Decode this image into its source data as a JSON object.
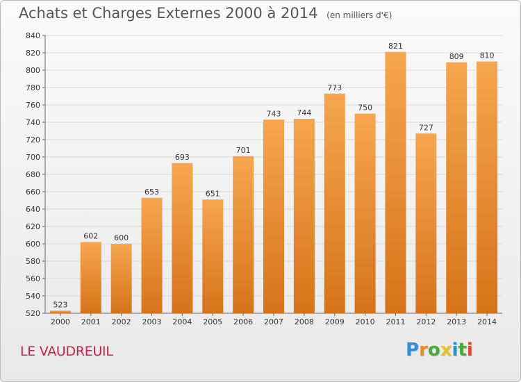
{
  "chart_data": {
    "type": "bar",
    "title": "Achats et Charges Externes 2000 à 2014",
    "subtitle": "(en milliers d'€)",
    "categories": [
      "2000",
      "2001",
      "2002",
      "2003",
      "2004",
      "2005",
      "2006",
      "2007",
      "2008",
      "2009",
      "2010",
      "2011",
      "2012",
      "2013",
      "2014"
    ],
    "values": [
      523,
      602,
      600,
      653,
      693,
      651,
      701,
      743,
      744,
      773,
      750,
      821,
      727,
      809,
      810
    ],
    "ylim": [
      520,
      840
    ],
    "yticks": [
      520,
      540,
      560,
      580,
      600,
      620,
      640,
      660,
      680,
      700,
      720,
      740,
      760,
      780,
      800,
      820,
      840
    ],
    "grid": true,
    "colors": {
      "bar_top": "#f6a64e",
      "bar_bottom": "#d6731a",
      "grid": "#d8d8d8"
    }
  },
  "location": "LE VAUDREUIL",
  "logo": {
    "letters": [
      "P",
      "r",
      "o",
      "x",
      "i",
      "t",
      "i"
    ],
    "colors": [
      "#2f8fd8",
      "#f08c1c",
      "#4aa83a",
      "#e8c21c",
      "#2f8fd8",
      "#4aa83a",
      "#e8442a"
    ]
  }
}
